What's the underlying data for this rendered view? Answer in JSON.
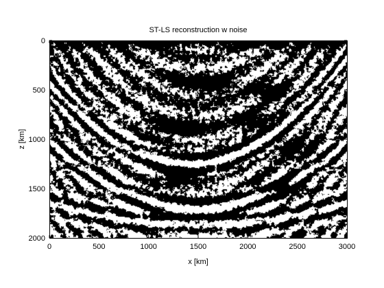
{
  "chart_data": {
    "type": "heatmap",
    "title": "ST-LS reconstruction w noise",
    "xlabel": "x [km]",
    "ylabel": "z [km]",
    "xlim": [
      0,
      3000
    ],
    "ylim": [
      0,
      2000
    ],
    "y_axis_reversed": true,
    "xticks": [
      0,
      500,
      1000,
      1500,
      2000,
      2500,
      3000
    ],
    "yticks": [
      0,
      500,
      1000,
      1500,
      2000
    ],
    "colormap": "gray (saturated black/white)",
    "colors": {
      "high": "#ffffff",
      "low": "#000000"
    },
    "grid": false,
    "legend": "none",
    "pattern_note_visible": "binary black/white seismic image, dense near surface, curving reflectors dipping toward center",
    "features": [
      {
        "kind": "bowl_reflector",
        "xc": 1400,
        "z_at_center": 1250,
        "curvature": 0.00042
      },
      {
        "kind": "bowl_reflector",
        "xc": 1500,
        "z_at_center": 1700,
        "curvature": 0.0003
      },
      {
        "kind": "bowl_reflector",
        "xc": 1500,
        "z_at_center": 1870,
        "curvature": 0.0001
      },
      {
        "kind": "blob",
        "x": 1300,
        "z": 880,
        "rx": 260,
        "rz": 110
      },
      {
        "kind": "blob",
        "x": 2050,
        "z": 820,
        "rx": 180,
        "rz": 90
      },
      {
        "kind": "blob",
        "x": 1600,
        "z": 450,
        "rx": 320,
        "rz": 100
      },
      {
        "kind": "blob",
        "x": 2250,
        "z": 520,
        "rx": 200,
        "rz": 90
      },
      {
        "kind": "blob",
        "x": 2500,
        "z": 1100,
        "rx": 180,
        "rz": 120
      },
      {
        "kind": "blob",
        "x": 1300,
        "z": 1380,
        "rx": 220,
        "rz": 110
      },
      {
        "kind": "blob",
        "x": 2350,
        "z": 1480,
        "rx": 260,
        "rz": 80
      },
      {
        "kind": "near_surface_band",
        "z_from": 0,
        "z_to": 120
      }
    ]
  }
}
